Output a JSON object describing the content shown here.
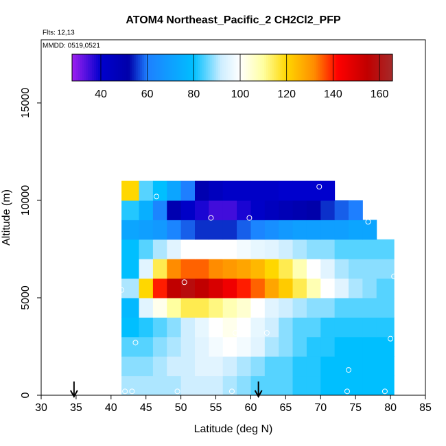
{
  "chart_data": {
    "type": "heatmap",
    "title": "ATOM4 Northeast_Pacific_2 CH2Cl2_PFP",
    "flights": "Flts: 12,13",
    "dates": "MMDD: 0519,0521",
    "x_label": "Latitude (deg N)",
    "y_label": "Altitude (m)",
    "xlim": [
      30,
      85
    ],
    "ylim": [
      0,
      18240
    ],
    "xticks": [
      30,
      35,
      40,
      45,
      50,
      55,
      60,
      65,
      70,
      75,
      80,
      85
    ],
    "yticks": [
      0,
      5000,
      10000,
      15000
    ],
    "x_edges": [
      41.5,
      44,
      46,
      48,
      50,
      52,
      54,
      56,
      58,
      60,
      62,
      64,
      66,
      68,
      70,
      72,
      74,
      76,
      78,
      80.5
    ],
    "y_edges": [
      0,
      1000,
      2000,
      3000,
      4000,
      5000,
      6000,
      7000,
      8000,
      9000,
      10000,
      11000
    ],
    "values": [
      [
        90,
        90,
        90,
        90,
        92,
        92,
        92,
        90,
        88,
        85,
        85,
        85,
        82,
        82,
        80,
        80,
        80,
        80,
        80
      ],
      [
        88,
        88,
        90,
        92,
        92,
        95,
        95,
        92,
        90,
        88,
        85,
        85,
        82,
        82,
        80,
        80,
        80,
        80,
        80
      ],
      [
        85,
        85,
        88,
        90,
        92,
        95,
        98,
        100,
        98,
        95,
        90,
        88,
        85,
        82,
        82,
        80,
        80,
        80,
        80
      ],
      [
        80,
        82,
        85,
        88,
        92,
        96,
        100,
        102,
        100,
        96,
        92,
        88,
        85,
        85,
        82,
        82,
        82,
        82,
        82
      ],
      [
        78,
        95,
        102,
        110,
        115,
        115,
        112,
        108,
        105,
        100,
        95,
        92,
        90,
        88,
        88,
        85,
        85,
        85,
        85
      ],
      [
        90,
        120,
        140,
        155,
        158,
        155,
        150,
        145,
        140,
        135,
        128,
        122,
        115,
        108,
        100,
        95,
        90,
        88,
        85
      ],
      [
        80,
        95,
        115,
        132,
        135,
        135,
        132,
        130,
        128,
        125,
        120,
        115,
        108,
        100,
        95,
        90,
        88,
        88,
        88
      ],
      [
        80,
        85,
        90,
        95,
        100,
        100,
        100,
        100,
        98,
        96,
        95,
        92,
        90,
        88,
        88,
        85,
        85,
        85,
        85
      ],
      [
        72,
        70,
        68,
        62,
        58,
        55,
        55,
        55,
        58,
        62,
        65,
        68,
        70,
        70,
        70,
        70,
        72,
        72,
        null
      ],
      [
        82,
        75,
        62,
        50,
        42,
        38,
        35,
        35,
        38,
        42,
        45,
        48,
        50,
        52,
        55,
        58,
        60,
        null,
        null
      ],
      [
        120,
        85,
        80,
        72,
        60,
        50,
        45,
        42,
        42,
        42,
        42,
        40,
        40,
        40,
        40,
        null,
        null,
        null,
        null
      ]
    ],
    "samples": {
      "x": [
        41.5,
        42,
        43,
        43.5,
        46.5,
        49.5,
        50.5,
        54.3,
        57.3,
        57.8,
        59.8,
        62.3,
        69.8,
        74,
        73.8,
        76.8,
        80.5,
        80,
        79.2
      ],
      "y": [
        5400,
        200,
        200,
        2700,
        10200,
        200,
        5800,
        9100,
        200,
        3200,
        9100,
        3200,
        10700,
        1300,
        200,
        8900,
        6100,
        2900,
        200
      ]
    },
    "arrows_x": [
      34.7,
      61.1
    ],
    "colorbar": {
      "range": [
        27.6,
        165.6
      ],
      "ticks": [
        40,
        60,
        80,
        100,
        120,
        140,
        160
      ],
      "colormap": [
        [
          27.6,
          "#a020f0"
        ],
        [
          40,
          "#0000cd"
        ],
        [
          52,
          "#0000aa"
        ],
        [
          60,
          "#1e7fff"
        ],
        [
          80,
          "#00bfff"
        ],
        [
          92,
          "#cfeeff"
        ],
        [
          100,
          "#ffffff"
        ],
        [
          110,
          "#ffffa0"
        ],
        [
          120,
          "#ffd700"
        ],
        [
          132,
          "#ff8c00"
        ],
        [
          142,
          "#ff0000"
        ],
        [
          155,
          "#c00000"
        ],
        [
          165.6,
          "#a52a2a"
        ]
      ]
    }
  }
}
